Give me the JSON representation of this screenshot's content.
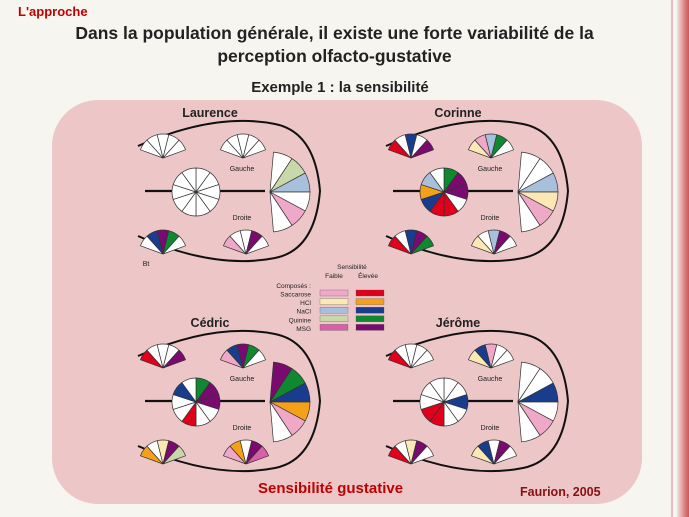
{
  "header": {
    "section": "L'approche",
    "title_line1": "Dans la population générale, il existe une forte variabilité de la",
    "title_line2": "perception olfacto-gustative",
    "subtitle": "Exemple 1 : la sensibilité"
  },
  "footer": {
    "caption": "Sensibilité gustative",
    "source": "Faurion, 2005"
  },
  "legend": {
    "heading": "Sensibilité",
    "col_low": "Faible",
    "col_high": "Élevée",
    "compounds_label": "Composés :",
    "items": [
      {
        "name": "Saccarose",
        "low": "#f0a8c8",
        "high": "#e0001c"
      },
      {
        "name": "HCl",
        "low": "#fbe8b4",
        "high": "#f4a018"
      },
      {
        "name": "NaCl",
        "low": "#a8c0dc",
        "high": "#1a3c8c"
      },
      {
        "name": "Quinine",
        "low": "#c8d8a8",
        "high": "#108830"
      },
      {
        "name": "MSG",
        "low": "#d860a8",
        "high": "#7a0a70"
      }
    ]
  },
  "labels": {
    "left": "Gauche",
    "right": "Droite",
    "tip": "Bt"
  },
  "subjects": [
    {
      "name": "Laurence",
      "fans": {
        "top_back": [
          "#ffffff",
          "#ffffff",
          "#ffffff",
          "#ffffff",
          "#ffffff"
        ],
        "top_front": [
          "#ffffff",
          "#ffffff",
          "#ffffff",
          "#ffffff",
          "#ffffff"
        ],
        "center": [
          "#ffffff",
          "#ffffff",
          "#ffffff",
          "#ffffff",
          "#ffffff",
          "#ffffff",
          "#ffffff",
          "#ffffff",
          "#ffffff",
          "#ffffff"
        ],
        "tip": [
          "#ffffff",
          "#c8d8a8",
          "#a8c0dc",
          "#ffffff",
          "#f0a8c8",
          "#ffffff"
        ],
        "bot_back": [
          "#ffffff",
          "#1a3c8c",
          "#7a0a70",
          "#108830",
          "#ffffff"
        ],
        "bot_front": [
          "#f0a8c8",
          "#ffffff",
          "#ffffff",
          "#7a0a70",
          "#ffffff"
        ]
      }
    },
    {
      "name": "Corinne",
      "fans": {
        "top_back": [
          "#e0001c",
          "#ffffff",
          "#1a3c8c",
          "#ffffff",
          "#7a0a70"
        ],
        "top_front": [
          "#fbe8b4",
          "#f0a8c8",
          "#a8c0dc",
          "#108830",
          "#ffffff"
        ],
        "center": [
          "#108830",
          "#7a0a70",
          "#7a0a70",
          "#ffffff",
          "#e0001c",
          "#e0001c",
          "#1a3c8c",
          "#f4a018",
          "#a8c0dc",
          "#ffffff"
        ],
        "tip": [
          "#ffffff",
          "#ffffff",
          "#a8c0dc",
          "#fbe8b4",
          "#f0a8c8",
          "#ffffff"
        ],
        "bot_back": [
          "#e0001c",
          "#ffffff",
          "#1a3c8c",
          "#7a0a70",
          "#108830"
        ],
        "bot_front": [
          "#fbe8b4",
          "#ffffff",
          "#a8c0dc",
          "#7a0a70",
          "#ffffff"
        ]
      }
    },
    {
      "name": "Cédric",
      "fans": {
        "top_back": [
          "#e0001c",
          "#ffffff",
          "#ffffff",
          "#ffffff",
          "#7a0a70"
        ],
        "top_front": [
          "#f0a8c8",
          "#1a3c8c",
          "#7a0a70",
          "#108830",
          "#ffffff"
        ],
        "center": [
          "#108830",
          "#7a0a70",
          "#7a0a70",
          "#ffffff",
          "#ffffff",
          "#e0001c",
          "#ffffff",
          "#ffffff",
          "#1a3c8c",
          "#ffffff"
        ],
        "tip": [
          "#7a0a70",
          "#108830",
          "#1a3c8c",
          "#f4a018",
          "#f0a8c8",
          "#ffffff"
        ],
        "bot_back": [
          "#f4a018",
          "#ffffff",
          "#fbe8b4",
          "#7a0a70",
          "#c8d8a8"
        ],
        "bot_front": [
          "#f0a8c8",
          "#f4a018",
          "#ffffff",
          "#7a0a70",
          "#d860a8"
        ]
      }
    },
    {
      "name": "Jérôme",
      "fans": {
        "top_back": [
          "#e0001c",
          "#ffffff",
          "#ffffff",
          "#ffffff",
          "#ffffff"
        ],
        "top_front": [
          "#fbe8b4",
          "#1a3c8c",
          "#f0a8c8",
          "#ffffff",
          "#ffffff"
        ],
        "center": [
          "#ffffff",
          "#ffffff",
          "#1a3c8c",
          "#ffffff",
          "#ffffff",
          "#e0001c",
          "#e0001c",
          "#ffffff",
          "#ffffff",
          "#ffffff"
        ],
        "tip": [
          "#ffffff",
          "#ffffff",
          "#1a3c8c",
          "#ffffff",
          "#f0a8c8",
          "#ffffff"
        ],
        "bot_back": [
          "#e0001c",
          "#ffffff",
          "#fbe8b4",
          "#7a0a70",
          "#ffffff"
        ],
        "bot_front": [
          "#fbe8b4",
          "#1a3c8c",
          "#ffffff",
          "#7a0a70",
          "#ffffff"
        ]
      }
    }
  ]
}
